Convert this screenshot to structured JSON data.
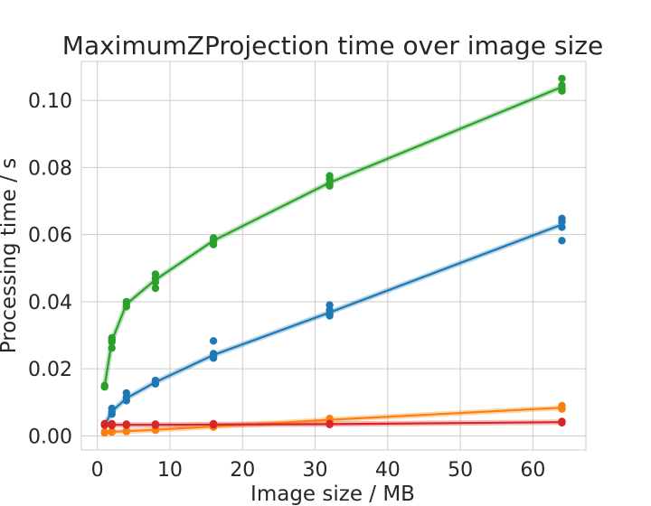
{
  "chart_data": {
    "type": "scatter",
    "title": "MaximumZProjection time over image size",
    "xlabel": "Image size / MB",
    "ylabel": "Processing time / s",
    "xlim": [
      -2.2,
      67.3
    ],
    "ylim": [
      -0.0042,
      0.1116
    ],
    "xticks": [
      0,
      10,
      20,
      30,
      40,
      50,
      60
    ],
    "yticks": [
      0.0,
      0.02,
      0.04,
      0.06,
      0.08,
      0.1
    ],
    "xtick_labels": [
      "0",
      "10",
      "20",
      "30",
      "40",
      "50",
      "60"
    ],
    "ytick_labels": [
      "0.00",
      "0.02",
      "0.04",
      "0.06",
      "0.08",
      "0.10"
    ],
    "grid": true,
    "legend": "none",
    "series": [
      {
        "color": "#1f77b4",
        "x": [
          1,
          2,
          2,
          2,
          4,
          4,
          4,
          8,
          8,
          8,
          16,
          16,
          16,
          16,
          32,
          32,
          32,
          32,
          64,
          64,
          64,
          64
        ],
        "y": [
          0.0032,
          0.0082,
          0.0072,
          0.0065,
          0.0128,
          0.0115,
          0.0105,
          0.0165,
          0.016,
          0.0155,
          0.0283,
          0.0245,
          0.0238,
          0.0232,
          0.039,
          0.0375,
          0.0365,
          0.0358,
          0.0648,
          0.0638,
          0.0622,
          0.0582
        ],
        "mean_line": {
          "x": [
            1,
            2,
            4,
            8,
            16,
            32,
            64
          ],
          "y": [
            0.0032,
            0.0073,
            0.0112,
            0.016,
            0.0241,
            0.0368,
            0.063
          ]
        }
      },
      {
        "color": "#ff7f0e",
        "x": [
          1,
          1,
          2,
          2,
          4,
          4,
          8,
          8,
          16,
          16,
          32,
          32,
          64,
          64,
          64
        ],
        "y": [
          0.0012,
          0.0009,
          0.0014,
          0.0011,
          0.0016,
          0.0013,
          0.002,
          0.0017,
          0.003,
          0.0026,
          0.0052,
          0.0046,
          0.009,
          0.0084,
          0.008
        ],
        "mean_line": {
          "x": [
            1,
            2,
            4,
            8,
            16,
            32,
            64
          ],
          "y": [
            0.001,
            0.0012,
            0.0014,
            0.0018,
            0.0028,
            0.0048,
            0.0084
          ]
        }
      },
      {
        "color": "#2ca02c",
        "x": [
          1,
          1,
          2,
          2,
          2,
          2,
          4,
          4,
          4,
          8,
          8,
          8,
          8,
          16,
          16,
          16,
          32,
          32,
          32,
          32,
          64,
          64,
          64,
          64
        ],
        "y": [
          0.015,
          0.0146,
          0.0292,
          0.0286,
          0.028,
          0.0262,
          0.04,
          0.0392,
          0.0385,
          0.0482,
          0.047,
          0.0458,
          0.044,
          0.059,
          0.058,
          0.057,
          0.0775,
          0.0765,
          0.0752,
          0.0745,
          0.1065,
          0.1045,
          0.1035,
          0.1028
        ],
        "mean_line": {
          "x": [
            1,
            2,
            4,
            8,
            16,
            32,
            64
          ],
          "y": [
            0.0148,
            0.0283,
            0.0393,
            0.0465,
            0.0582,
            0.0755,
            0.104
          ]
        }
      },
      {
        "color": "#d62728",
        "x": [
          1,
          1,
          2,
          2,
          4,
          4,
          8,
          8,
          16,
          16,
          32,
          32,
          64,
          64
        ],
        "y": [
          0.0036,
          0.0032,
          0.0036,
          0.0031,
          0.0035,
          0.0032,
          0.0035,
          0.0032,
          0.0036,
          0.0033,
          0.0037,
          0.0034,
          0.0043,
          0.0039
        ],
        "mean_line": {
          "x": [
            1,
            2,
            4,
            8,
            16,
            32,
            64
          ],
          "y": [
            0.0034,
            0.0033,
            0.0033,
            0.0033,
            0.0034,
            0.0035,
            0.0041
          ]
        }
      }
    ]
  }
}
